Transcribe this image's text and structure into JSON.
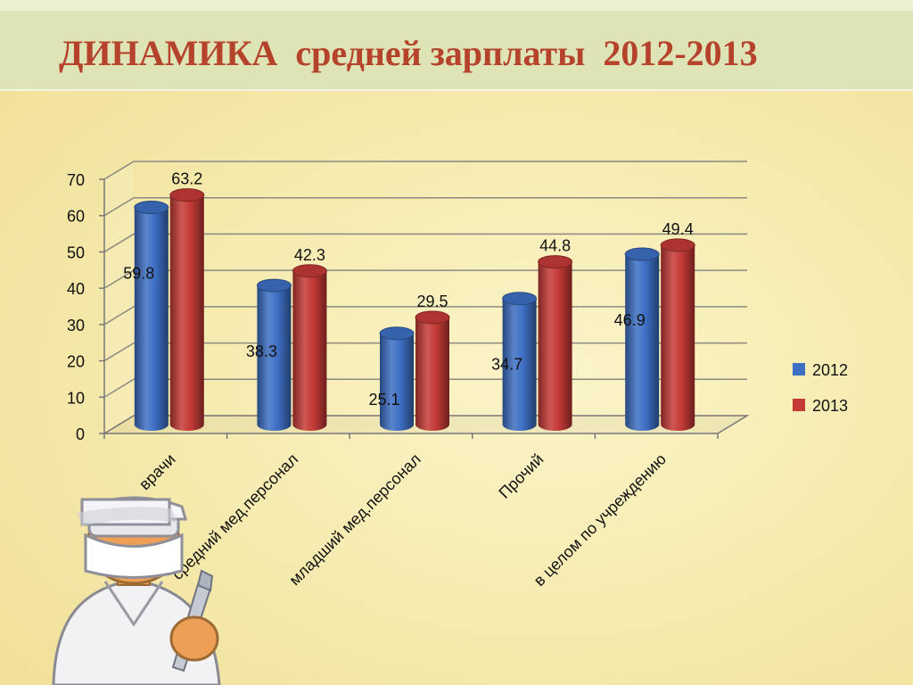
{
  "page": {
    "title": "ДИНАМИКА  средней зарплаты  2012-2013"
  },
  "chart_data": {
    "type": "bar",
    "title": "ДИНАМИКА  средней зарплаты  2012-2013",
    "categories": [
      "врачи",
      "средний мед.персонал",
      "младший мед.персонал",
      "Прочий",
      "в целом по учреждению"
    ],
    "series": [
      {
        "name": "2012",
        "values": [
          59.8,
          38.3,
          25.1,
          34.7,
          46.9
        ],
        "color": "#3d6fc4"
      },
      {
        "name": "2013",
        "values": [
          63.2,
          42.3,
          29.5,
          44.8,
          49.4
        ],
        "color": "#c53a36"
      }
    ],
    "ylim": [
      0,
      70
    ],
    "yticks": [
      0,
      10,
      20,
      30,
      40,
      50,
      60,
      70
    ],
    "grid": true,
    "legend_position": "right"
  },
  "illustration": {
    "icon": "doctor-with-scalpel-icon"
  }
}
